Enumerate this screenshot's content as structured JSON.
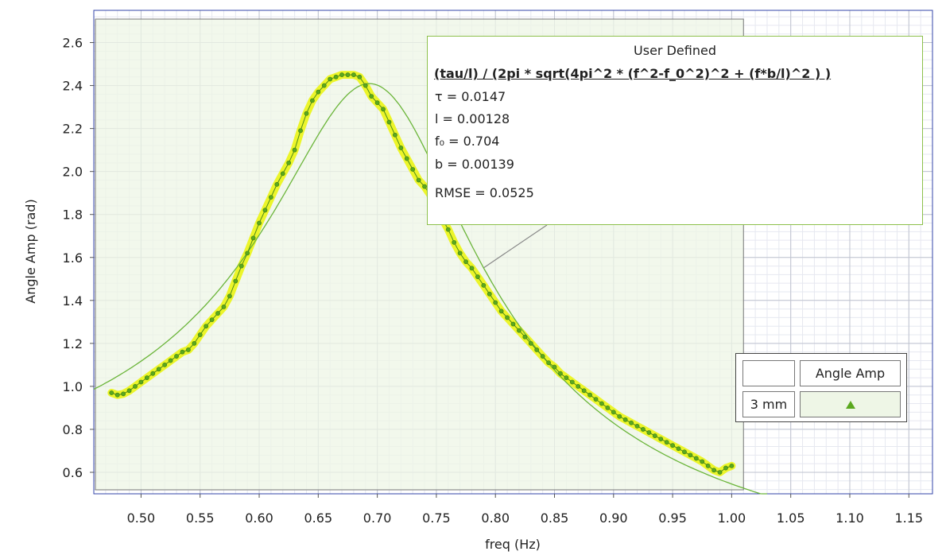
{
  "chart_data": {
    "type": "scatter",
    "xlabel": "freq (Hz)",
    "ylabel": "Angle Amp (rad)",
    "xlim": [
      0.46,
      1.17
    ],
    "ylim": [
      0.5,
      2.75
    ],
    "x_ticks": [
      "0.50",
      "0.55",
      "0.60",
      "0.65",
      "0.70",
      "0.75",
      "0.80",
      "0.85",
      "0.90",
      "0.95",
      "1.00",
      "1.05",
      "1.10",
      "1.15"
    ],
    "y_ticks": [
      "0.6",
      "0.8",
      "1.0",
      "1.2",
      "1.4",
      "1.6",
      "1.8",
      "2.0",
      "2.2",
      "2.4",
      "2.6"
    ],
    "grid": true,
    "series": [
      {
        "name": "Angle Amp",
        "color": "#5aa81e",
        "x": [
          0.475,
          0.48,
          0.485,
          0.49,
          0.495,
          0.5,
          0.505,
          0.51,
          0.515,
          0.52,
          0.525,
          0.53,
          0.535,
          0.54,
          0.545,
          0.55,
          0.555,
          0.56,
          0.565,
          0.57,
          0.575,
          0.58,
          0.585,
          0.59,
          0.595,
          0.6,
          0.605,
          0.61,
          0.615,
          0.62,
          0.625,
          0.63,
          0.635,
          0.64,
          0.645,
          0.65,
          0.655,
          0.66,
          0.665,
          0.67,
          0.675,
          0.68,
          0.685,
          0.69,
          0.695,
          0.7,
          0.705,
          0.71,
          0.715,
          0.72,
          0.725,
          0.73,
          0.735,
          0.74,
          0.745,
          0.75,
          0.755,
          0.76,
          0.765,
          0.77,
          0.775,
          0.78,
          0.785,
          0.79,
          0.795,
          0.8,
          0.805,
          0.81,
          0.815,
          0.82,
          0.825,
          0.83,
          0.835,
          0.84,
          0.845,
          0.85,
          0.855,
          0.86,
          0.865,
          0.87,
          0.875,
          0.88,
          0.885,
          0.89,
          0.895,
          0.9,
          0.905,
          0.91,
          0.915,
          0.92,
          0.925,
          0.93,
          0.935,
          0.94,
          0.945,
          0.95,
          0.955,
          0.96,
          0.965,
          0.97,
          0.975,
          0.98,
          0.985,
          0.99,
          0.995,
          1.0
        ],
        "y": [
          0.97,
          0.96,
          0.965,
          0.98,
          1.0,
          1.02,
          1.04,
          1.06,
          1.08,
          1.1,
          1.12,
          1.14,
          1.16,
          1.17,
          1.2,
          1.24,
          1.28,
          1.31,
          1.34,
          1.37,
          1.42,
          1.49,
          1.56,
          1.62,
          1.69,
          1.76,
          1.82,
          1.88,
          1.94,
          1.99,
          2.04,
          2.1,
          2.19,
          2.27,
          2.33,
          2.37,
          2.4,
          2.43,
          2.44,
          2.45,
          2.45,
          2.45,
          2.44,
          2.4,
          2.35,
          2.32,
          2.29,
          2.23,
          2.17,
          2.11,
          2.06,
          2.01,
          1.96,
          1.93,
          1.89,
          1.84,
          1.78,
          1.73,
          1.67,
          1.62,
          1.58,
          1.55,
          1.51,
          1.47,
          1.43,
          1.39,
          1.35,
          1.32,
          1.29,
          1.26,
          1.23,
          1.2,
          1.17,
          1.14,
          1.11,
          1.09,
          1.06,
          1.04,
          1.02,
          1.0,
          0.98,
          0.96,
          0.94,
          0.92,
          0.9,
          0.88,
          0.86,
          0.845,
          0.83,
          0.815,
          0.8,
          0.785,
          0.77,
          0.755,
          0.74,
          0.725,
          0.71,
          0.695,
          0.68,
          0.665,
          0.65,
          0.63,
          0.61,
          0.6,
          0.62,
          0.63
        ]
      }
    ],
    "fit": {
      "name": "User Defined",
      "equation": "(tau/l) / (2pi * sqrt(4pi^2 * (f^2-f_0^2)^2 + (f*b/l)^2 ) )",
      "tau": 0.0147,
      "l": 0.00128,
      "f0": 0.704,
      "b": 0.00139,
      "x_range": [
        0.46,
        1.03
      ],
      "color": "#6bb53a"
    },
    "selection_range": [
      0.46,
      1.01
    ]
  },
  "fit_box": {
    "title": "User Defined",
    "equation": "(tau/l) / (2pi * sqrt(4pi^2 * (f^2-f_0^2)^2 + (f*b/l)^2 ) )",
    "params": [
      "τ  = 0.0147",
      "l   = 0.00128",
      "f₀ = 0.704",
      "b  = 0.00139"
    ],
    "rmse": "RMSE = 0.0525"
  },
  "legend": {
    "series_label": "Angle Amp",
    "group_label": "3 mm"
  }
}
